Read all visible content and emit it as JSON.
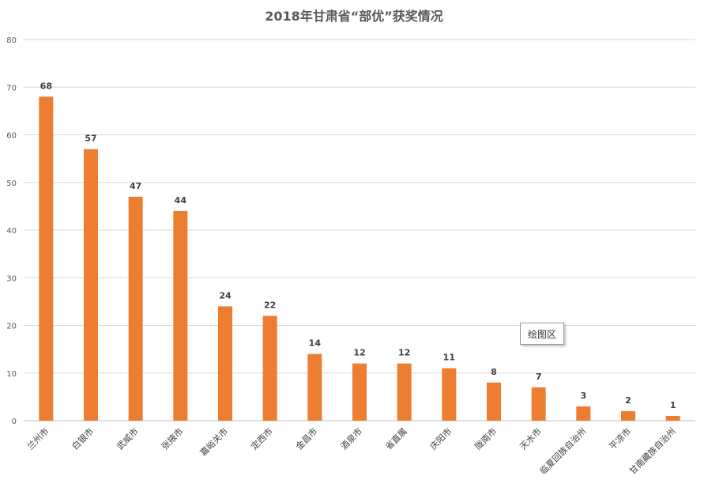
{
  "chart_data": {
    "type": "bar",
    "title": "2018年甘肃省“部优”获奖情况",
    "xlabel": "",
    "ylabel": "",
    "categories": [
      "兰州市",
      "白银市",
      "武威市",
      "张掖市",
      "嘉峪关市",
      "定西市",
      "金昌市",
      "酒泉市",
      "省直属",
      "庆阳市",
      "陇南市",
      "天水市",
      "临夏回族自治州",
      "平凉市",
      "甘南藏族自治州"
    ],
    "values": [
      68,
      57,
      47,
      44,
      24,
      22,
      14,
      12,
      12,
      11,
      8,
      7,
      3,
      2,
      1
    ],
    "ylim": [
      0,
      80
    ],
    "yticks": [
      0,
      10,
      20,
      30,
      40,
      50,
      60,
      70,
      80
    ],
    "grid": true,
    "data_labels": true,
    "bar_color": "#ED7D31"
  },
  "tooltip": {
    "label": "绘图区"
  }
}
